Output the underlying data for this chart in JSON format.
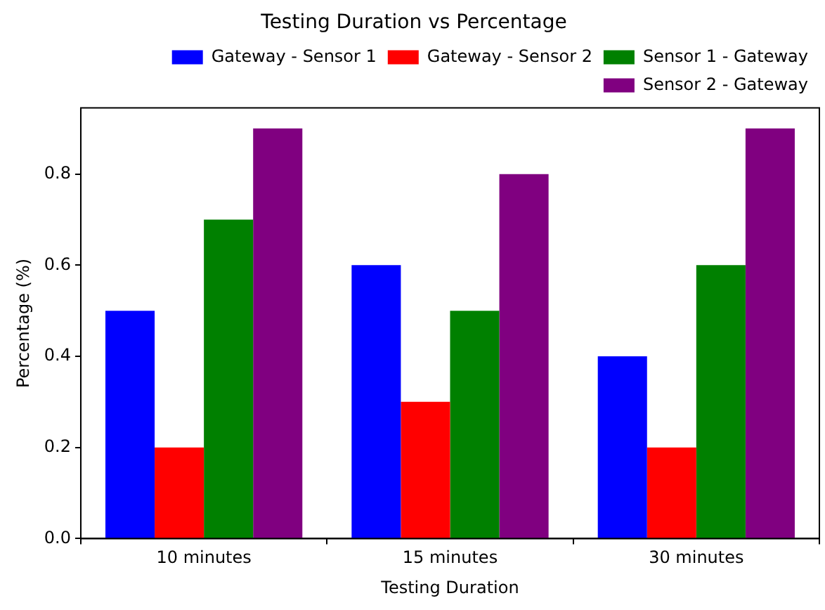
{
  "chart_data": {
    "type": "bar",
    "title": "Testing Duration vs Percentage",
    "xlabel": "Testing Duration",
    "ylabel": "Percentage (%)",
    "categories": [
      "10 minutes",
      "15 minutes",
      "30 minutes"
    ],
    "series": [
      {
        "name": "Gateway - Sensor 1",
        "color": "#0000ff",
        "values": [
          0.5,
          0.6,
          0.4
        ]
      },
      {
        "name": "Gateway - Sensor 2",
        "color": "#ff0000",
        "values": [
          0.2,
          0.3,
          0.2
        ]
      },
      {
        "name": "Sensor 1 - Gateway",
        "color": "#008000",
        "values": [
          0.7,
          0.5,
          0.6
        ]
      },
      {
        "name": "Sensor 2 - Gateway",
        "color": "#800080",
        "values": [
          0.9,
          0.8,
          0.9
        ]
      }
    ],
    "ylim": [
      0,
      0.945
    ],
    "yticks": [
      {
        "value": 0,
        "label": "0.0"
      },
      {
        "value": 0.2,
        "label": "0.2"
      },
      {
        "value": 0.4,
        "label": "0.4"
      },
      {
        "value": 0.6,
        "label": "0.6"
      },
      {
        "value": 0.8,
        "label": "0.8"
      }
    ],
    "grid": false,
    "legend": "top right"
  }
}
